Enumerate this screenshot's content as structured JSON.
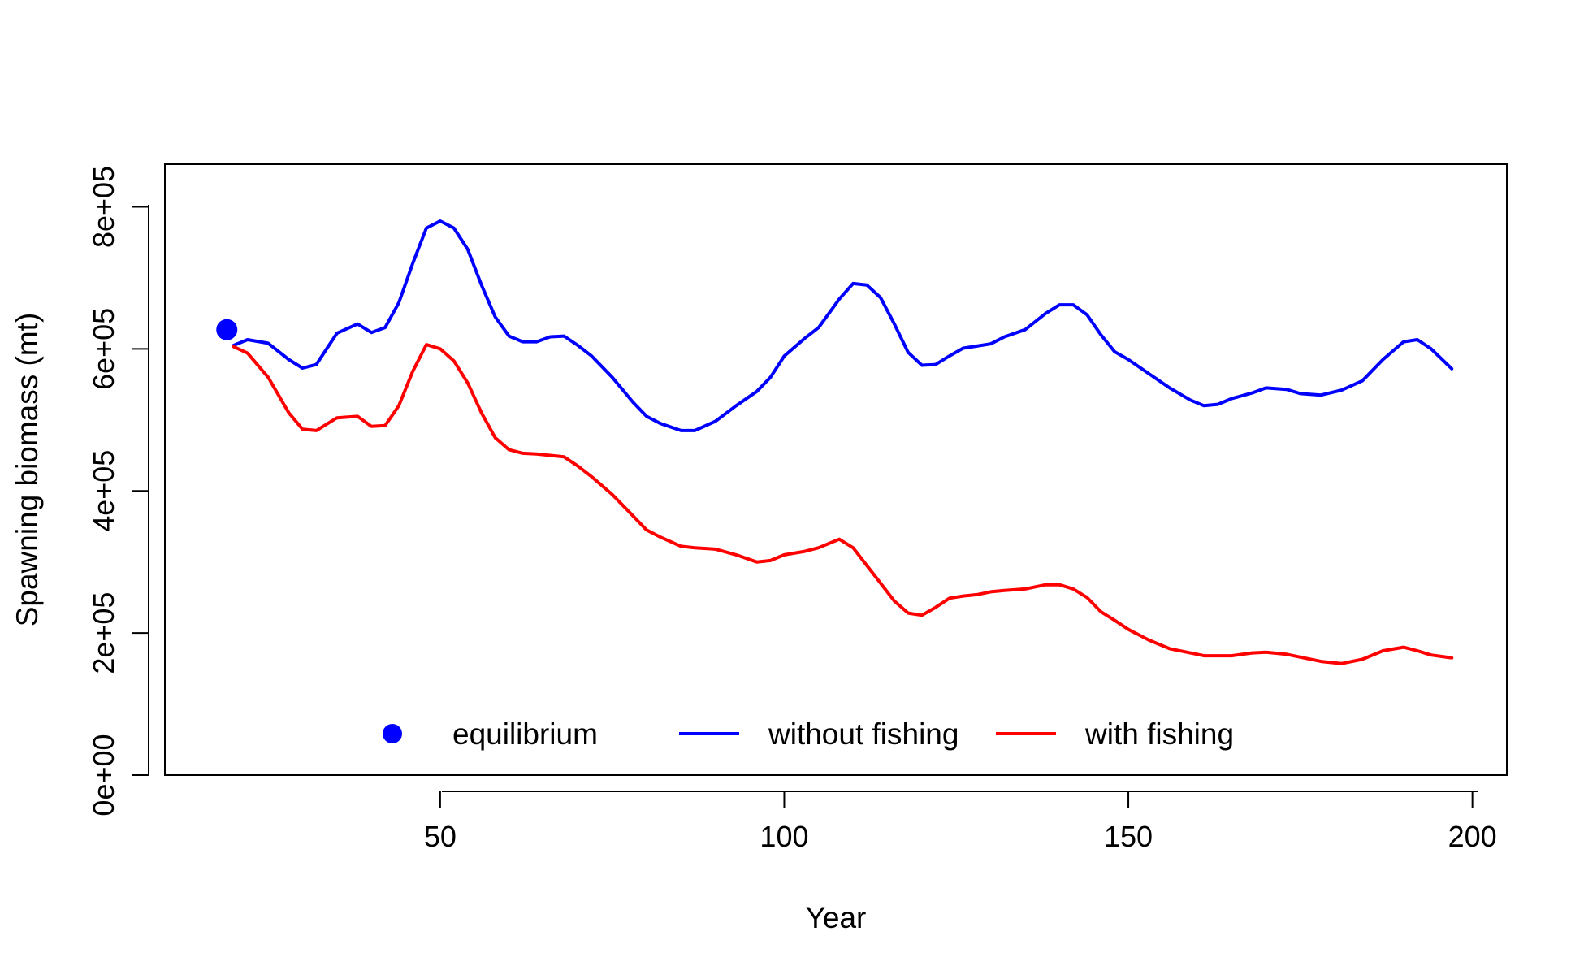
{
  "chart_data": {
    "type": "line",
    "xlabel": "Year",
    "ylabel": "Spawning biomass (mt)",
    "xlim": [
      10,
      205
    ],
    "ylim": [
      0,
      860000
    ],
    "x_ticks": [
      {
        "value": 50,
        "label": "50"
      },
      {
        "value": 100,
        "label": "100"
      },
      {
        "value": 150,
        "label": "150"
      },
      {
        "value": 200,
        "label": "200"
      }
    ],
    "y_ticks": [
      {
        "value": 0,
        "label": "0e+00"
      },
      {
        "value": 200000,
        "label": "2e+05"
      },
      {
        "value": 400000,
        "label": "4e+05"
      },
      {
        "value": 600000,
        "label": "6e+05"
      },
      {
        "value": 800000,
        "label": "8e+05"
      }
    ],
    "grid": false,
    "legend_position": "bottom-center",
    "points": [
      {
        "name": "equilibrium",
        "color": "#0000ff",
        "x": 19,
        "y": 627000
      }
    ],
    "series": [
      {
        "name": "without fishing",
        "color": "#0000ff",
        "x": [
          20,
          22,
          25,
          28,
          30,
          32,
          35,
          38,
          40,
          42,
          44,
          46,
          48,
          50,
          52,
          54,
          56,
          58,
          60,
          62,
          64,
          66,
          68,
          70,
          72,
          75,
          78,
          80,
          82,
          85,
          87,
          90,
          93,
          96,
          98,
          100,
          103,
          105,
          108,
          110,
          112,
          114,
          116,
          118,
          120,
          122,
          124,
          126,
          128,
          130,
          132,
          135,
          138,
          140,
          142,
          144,
          146,
          148,
          150,
          153,
          156,
          159,
          161,
          163,
          165,
          168,
          170,
          173,
          175,
          178,
          181,
          184,
          187,
          190,
          192,
          194,
          197
        ],
        "y": [
          605000,
          613000,
          608000,
          585000,
          573000,
          578000,
          622000,
          635000,
          623000,
          630000,
          665000,
          720000,
          770000,
          780000,
          770000,
          740000,
          690000,
          645000,
          618000,
          610000,
          610000,
          617000,
          618000,
          605000,
          590000,
          560000,
          525000,
          505000,
          495000,
          485000,
          485000,
          498000,
          520000,
          540000,
          560000,
          590000,
          615000,
          630000,
          670000,
          692000,
          690000,
          672000,
          635000,
          595000,
          577000,
          578000,
          590000,
          601000,
          604000,
          607000,
          617000,
          627000,
          650000,
          662000,
          662000,
          648000,
          620000,
          596000,
          585000,
          565000,
          545000,
          528000,
          520000,
          522000,
          530000,
          538000,
          545000,
          543000,
          537000,
          535000,
          542000,
          555000,
          585000,
          610000,
          613000,
          600000,
          572000
        ]
      },
      {
        "name": "with fishing",
        "color": "#ff0000",
        "x": [
          20,
          22,
          25,
          28,
          30,
          32,
          35,
          38,
          40,
          42,
          44,
          46,
          48,
          50,
          52,
          54,
          56,
          58,
          60,
          62,
          64,
          66,
          68,
          70,
          72,
          75,
          78,
          80,
          82,
          85,
          87,
          90,
          93,
          96,
          98,
          100,
          103,
          105,
          108,
          110,
          112,
          114,
          116,
          118,
          120,
          122,
          124,
          126,
          128,
          130,
          132,
          135,
          138,
          140,
          142,
          144,
          146,
          148,
          150,
          153,
          156,
          159,
          161,
          163,
          165,
          168,
          170,
          173,
          175,
          178,
          181,
          184,
          187,
          190,
          192,
          194,
          197
        ],
        "y": [
          603000,
          594000,
          560000,
          510000,
          487000,
          485000,
          503000,
          505000,
          491000,
          492000,
          520000,
          568000,
          606000,
          600000,
          583000,
          552000,
          510000,
          475000,
          458000,
          453000,
          452000,
          450000,
          448000,
          435000,
          420000,
          395000,
          365000,
          345000,
          335000,
          322000,
          320000,
          318000,
          310000,
          300000,
          302000,
          310000,
          315000,
          320000,
          332000,
          320000,
          295000,
          270000,
          245000,
          228000,
          225000,
          236000,
          249000,
          252000,
          254000,
          258000,
          260000,
          262000,
          268000,
          268000,
          262000,
          250000,
          230000,
          218000,
          205000,
          190000,
          178000,
          172000,
          168000,
          168000,
          168000,
          172000,
          173000,
          170000,
          166000,
          160000,
          157000,
          163000,
          175000,
          180000,
          175000,
          169000,
          165000
        ]
      }
    ]
  }
}
